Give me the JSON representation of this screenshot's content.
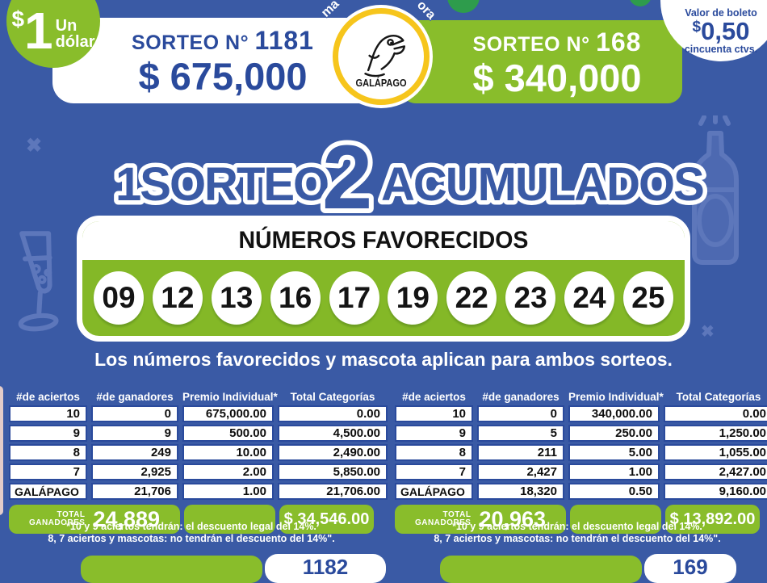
{
  "dollar_badge": {
    "symbol": "$",
    "number": "1",
    "label1": "Un",
    "label2": "dólar"
  },
  "sorteo_left": {
    "title": "SORTEO N°",
    "number": "1181",
    "prize": "$ 675,000"
  },
  "sorteo_right": {
    "title": "SORTEO N°",
    "number": "168",
    "prize": "$ 340,000"
  },
  "mascot": {
    "name": "GALÁPAGO",
    "curved_left": "ma",
    "curved_right": "ora"
  },
  "ticket": {
    "line1": "Valor de boleto",
    "symbol": "$",
    "amount": "0,50",
    "line2": "cincuenta ctvs."
  },
  "headline": {
    "part1": "1SORTEO",
    "big": "2",
    "part2": "ACUMULADOS"
  },
  "favored": {
    "title": "NÚMEROS FAVORECIDOS",
    "numbers": [
      "09",
      "12",
      "13",
      "16",
      "17",
      "19",
      "22",
      "23",
      "24",
      "25"
    ]
  },
  "caption": "Los números favorecidos y mascota aplican para ambos sorteos.",
  "tables": {
    "headers": [
      "#de aciertos",
      "#de ganadores",
      "Premio Individual*",
      "Total Categorías"
    ],
    "left": {
      "rows": [
        [
          "10",
          "0",
          "675,000.00",
          "0.00"
        ],
        [
          "9",
          "9",
          "500.00",
          "4,500.00"
        ],
        [
          "8",
          "249",
          "10.00",
          "2,490.00"
        ],
        [
          "7",
          "2,925",
          "2.00",
          "5,850.00"
        ],
        [
          "GALÁPAGO",
          "21,706",
          "1.00",
          "21,706.00"
        ]
      ],
      "total_label1": "TOTAL",
      "total_label2": "GANADORES",
      "total_winners": "24,889",
      "total_amount": "$ 34,546.00"
    },
    "right": {
      "rows": [
        [
          "10",
          "0",
          "340,000.00",
          "0.00"
        ],
        [
          "9",
          "5",
          "250.00",
          "1,250.00"
        ],
        [
          "8",
          "211",
          "5.00",
          "1,055.00"
        ],
        [
          "7",
          "2,427",
          "1.00",
          "2,427.00"
        ],
        [
          "GALÁPAGO",
          "18,320",
          "0.50",
          "9,160.00"
        ]
      ],
      "total_label1": "TOTAL",
      "total_label2": "GANADORES",
      "total_winners": "20,963",
      "total_amount": "$ 13,892.00"
    }
  },
  "footnote": {
    "line1": "*10 y 9 aciertos tendrán: el descuento legal del 14%.",
    "line2": "8, 7 aciertos y mascotas: no tendrán el descuento del 14%\"."
  },
  "next_draws": {
    "left_number": "1182",
    "right_number": "169"
  }
}
